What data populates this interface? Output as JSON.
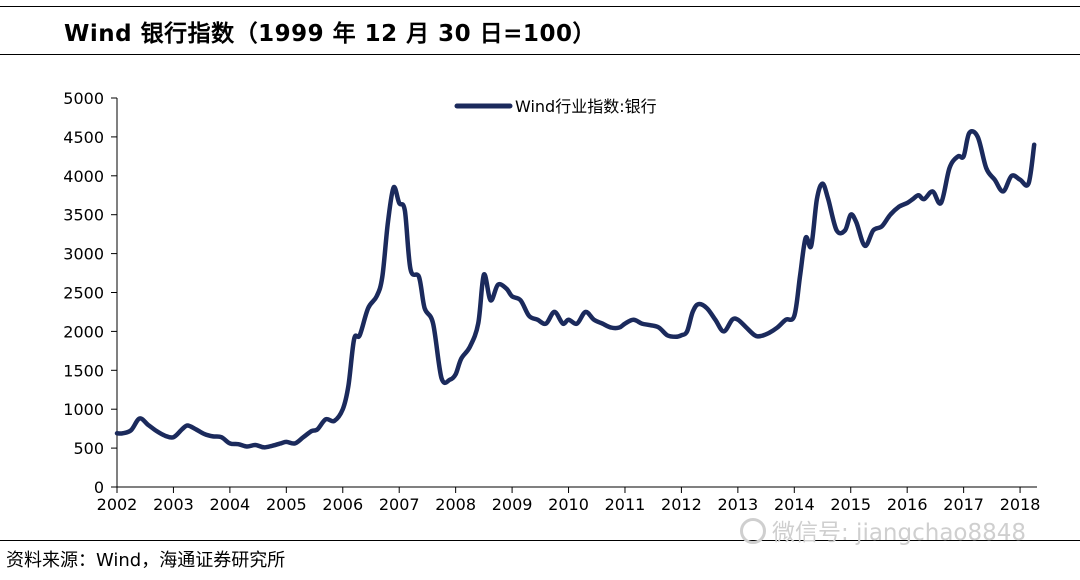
{
  "title": "Wind 银行指数（1999 年 12 月 30 日=100）",
  "source": "资料来源：Wind，海通证券研究所",
  "watermark": "微信号: jiangchao8848",
  "colors": {
    "line": "#1b2a5c",
    "axis": "#000000"
  },
  "chart_data": {
    "type": "line",
    "title": "Wind 银行指数（1999 年 12 月 30 日=100）",
    "xlabel": "",
    "ylabel": "",
    "grid": false,
    "legend_position": "top-center",
    "xlim": [
      2002,
      2018.3
    ],
    "ylim": [
      0,
      5000
    ],
    "y_ticks": [
      0,
      500,
      1000,
      1500,
      2000,
      2500,
      3000,
      3500,
      4000,
      4500,
      5000
    ],
    "x_ticks": [
      "2002",
      "2003",
      "2004",
      "2005",
      "2006",
      "2007",
      "2008",
      "2009",
      "2010",
      "2011",
      "2012",
      "2013",
      "2014",
      "2015",
      "2016",
      "2017",
      "2018"
    ],
    "series": [
      {
        "name": "Wind行业指数:银行",
        "x": [
          2002.0,
          2002.1,
          2002.25,
          2002.4,
          2002.55,
          2002.7,
          2002.85,
          2003.0,
          2003.15,
          2003.25,
          2003.4,
          2003.55,
          2003.7,
          2003.85,
          2004.0,
          2004.15,
          2004.3,
          2004.45,
          2004.6,
          2004.75,
          2004.9,
          2005.0,
          2005.15,
          2005.3,
          2005.45,
          2005.55,
          2005.7,
          2005.85,
          2006.0,
          2006.1,
          2006.2,
          2006.3,
          2006.45,
          2006.6,
          2006.7,
          2006.8,
          2006.9,
          2007.0,
          2007.1,
          2007.2,
          2007.35,
          2007.45,
          2007.6,
          2007.75,
          2007.9,
          2008.0,
          2008.1,
          2008.25,
          2008.4,
          2008.5,
          2008.62,
          2008.75,
          2008.9,
          2009.0,
          2009.15,
          2009.3,
          2009.45,
          2009.6,
          2009.75,
          2009.9,
          2010.0,
          2010.15,
          2010.3,
          2010.45,
          2010.6,
          2010.75,
          2010.9,
          2011.0,
          2011.15,
          2011.3,
          2011.45,
          2011.6,
          2011.75,
          2011.9,
          2012.0,
          2012.1,
          2012.2,
          2012.3,
          2012.45,
          2012.6,
          2012.75,
          2012.9,
          2013.0,
          2013.15,
          2013.3,
          2013.4,
          2013.55,
          2013.7,
          2013.85,
          2014.0,
          2014.1,
          2014.2,
          2014.3,
          2014.4,
          2014.5,
          2014.6,
          2014.75,
          2014.9,
          2015.0,
          2015.1,
          2015.25,
          2015.4,
          2015.55,
          2015.7,
          2015.85,
          2016.0,
          2016.1,
          2016.2,
          2016.3,
          2016.45,
          2016.6,
          2016.75,
          2016.9,
          2017.0,
          2017.1,
          2017.25,
          2017.4,
          2017.55,
          2017.7,
          2017.85,
          2018.0,
          2018.15,
          2018.25
        ],
        "values": [
          690,
          690,
          730,
          880,
          800,
          720,
          660,
          640,
          740,
          790,
          740,
          680,
          650,
          640,
          560,
          550,
          520,
          540,
          510,
          530,
          560,
          580,
          560,
          640,
          720,
          740,
          870,
          850,
          1000,
          1300,
          1900,
          1950,
          2300,
          2450,
          2700,
          3400,
          3850,
          3650,
          3550,
          2800,
          2700,
          2300,
          2100,
          1400,
          1380,
          1450,
          1650,
          1800,
          2100,
          2730,
          2400,
          2600,
          2550,
          2450,
          2400,
          2200,
          2150,
          2100,
          2250,
          2100,
          2150,
          2100,
          2250,
          2150,
          2100,
          2050,
          2050,
          2100,
          2150,
          2100,
          2080,
          2050,
          1950,
          1930,
          1950,
          2000,
          2250,
          2350,
          2300,
          2150,
          2000,
          2150,
          2150,
          2050,
          1950,
          1940,
          1980,
          2050,
          2150,
          2200,
          2700,
          3200,
          3100,
          3700,
          3900,
          3700,
          3300,
          3300,
          3500,
          3400,
          3100,
          3300,
          3350,
          3500,
          3600,
          3650,
          3700,
          3750,
          3700,
          3800,
          3650,
          4100,
          4250,
          4250,
          4550,
          4500,
          4100,
          3950,
          3800,
          4000,
          3950,
          3900,
          4400
        ]
      }
    ]
  }
}
